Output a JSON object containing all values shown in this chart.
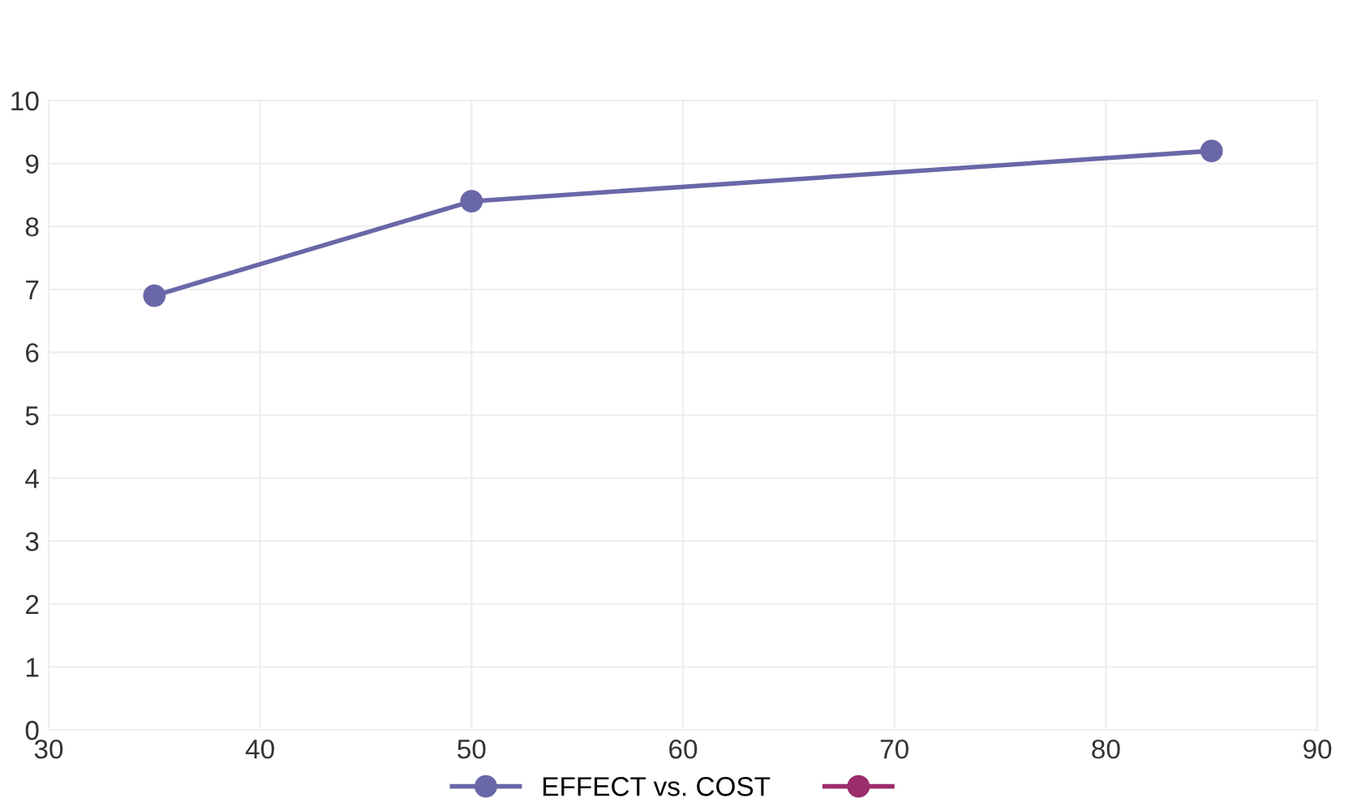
{
  "chart_data": {
    "type": "line",
    "x": [
      35,
      50,
      85
    ],
    "series": [
      {
        "name": "EFFECT vs. COST",
        "color": "#6a67a8",
        "values": [
          6.9,
          8.4,
          9.2
        ]
      },
      {
        "color": "#9b2d6b",
        "values": [
          null,
          null,
          null
        ]
      }
    ],
    "xlim": [
      30,
      90
    ],
    "xticks": [
      30,
      40,
      50,
      60,
      70,
      80,
      90
    ],
    "ylim": [
      0,
      10
    ],
    "yticks": [
      0,
      1,
      2,
      3,
      4,
      5,
      6,
      7,
      8,
      9,
      10
    ],
    "grid": true,
    "legend": "bottom",
    "marker": "circle",
    "line_style": "solid"
  }
}
